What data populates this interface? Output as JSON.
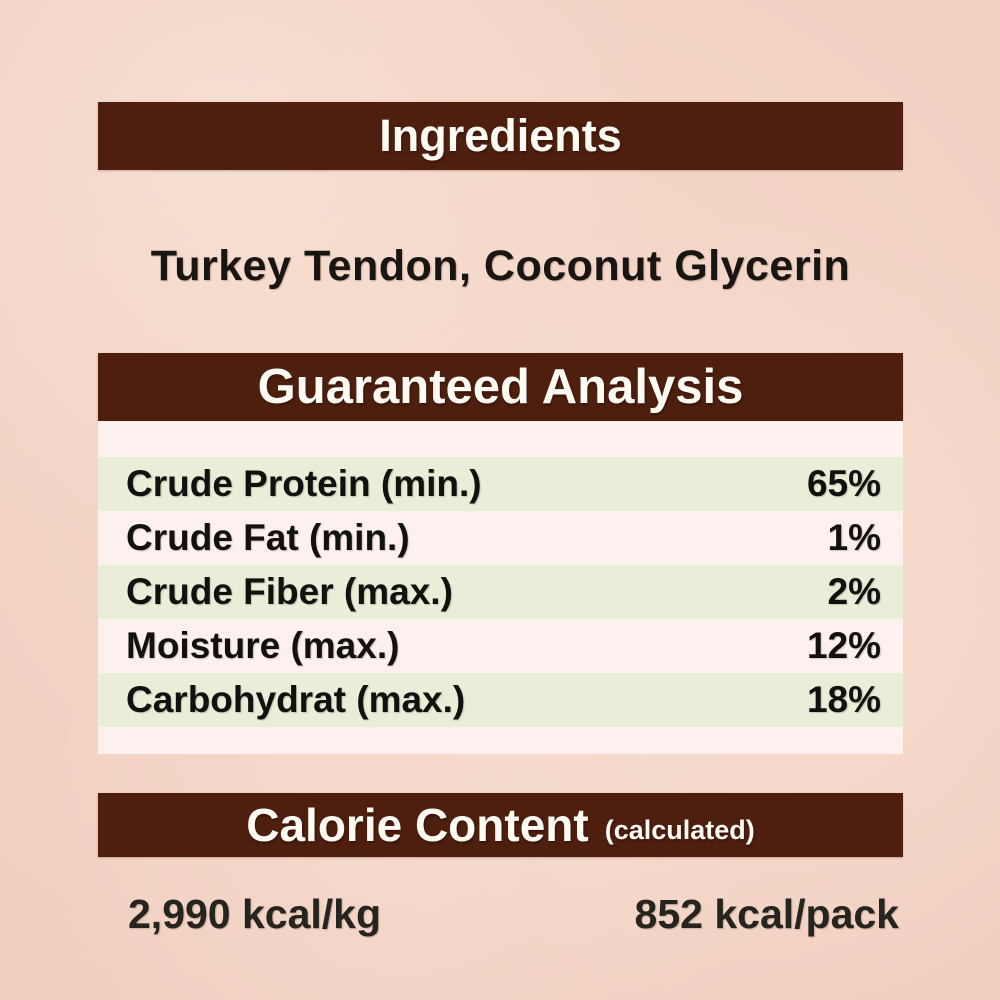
{
  "page": {
    "background_color": "#f1d0c1",
    "header_bar_color": "#4e1f0e",
    "header_text_color": "#fdfbf4",
    "table_panel_color": "#fcf1ee",
    "table_stripe_color": "#e9eed9",
    "body_text_color": "#181512"
  },
  "sections": {
    "ingredients": {
      "title": "Ingredients",
      "text": "Turkey Tendon, Coconut Glycerin"
    },
    "guaranteed_analysis": {
      "title": "Guaranteed Analysis",
      "rows": [
        {
          "label": "Crude Protein (min.)",
          "value": "65%"
        },
        {
          "label": "Crude Fat (min.)",
          "value": "1%"
        },
        {
          "label": "Crude Fiber (max.)",
          "value": "2%"
        },
        {
          "label": "Moisture (max.)",
          "value": "12%"
        },
        {
          "label": "Carbohydrat (max.)",
          "value": "18%"
        }
      ]
    },
    "calorie_content": {
      "title": "Calorie Content",
      "subtitle": "(calculated)",
      "kcal_per_kg": "2,990 kcal/kg",
      "kcal_per_pack": "852 kcal/pack"
    }
  }
}
